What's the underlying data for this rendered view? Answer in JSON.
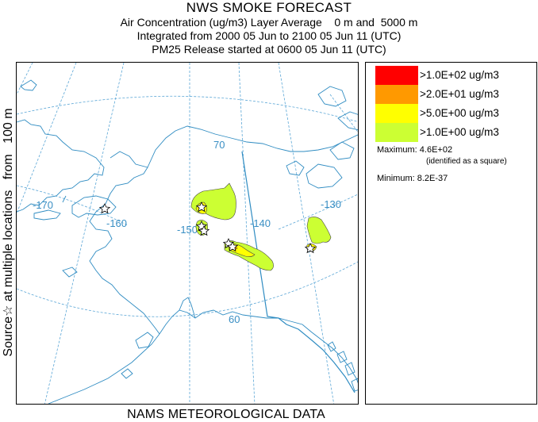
{
  "header": {
    "title": "NWS SMOKE FORECAST",
    "line1": "Air Concentration (ug/m3) Layer Average    0 m and  5000 m",
    "line2": "Integrated from 2000 05 Jun to 2100 05 Jun 11 (UTC)",
    "line3": "PM25 Release started at 0600 05 Jun 11 (UTC)"
  },
  "side_label": "Source☆ at multiple locations   from   100 m",
  "footer": "NAMS METEOROLOGICAL DATA",
  "map": {
    "graticule_labels": {
      "lat_70": "70",
      "lat_60": "60",
      "lon_m170": "-170",
      "lon_m160": "-160",
      "lon_m150": "-150",
      "lon_m140": "-140",
      "lon_m130": "-130"
    },
    "colors": {
      "graticule": "#5aa6d6",
      "coast": "#2f8cc2",
      "level_1": "#ff0000",
      "level_2": "#ff9900",
      "level_3": "#ffff00",
      "level_4": "#ccff33"
    }
  },
  "legend": {
    "levels": [
      {
        "label": ">1.0E+02 ug/m3",
        "color": "#ff0000"
      },
      {
        "label": ">2.0E+01 ug/m3",
        "color": "#ff9900"
      },
      {
        "label": ">5.0E+00 ug/m3",
        "color": "#ffff00"
      },
      {
        "label": ">1.0E+00 ug/m3",
        "color": "#ccff33"
      }
    ],
    "maximum": "Maximum: 4.6E+02",
    "maximum_note": "(identified as a square)",
    "minimum": "Minimum: 8.2E-37"
  }
}
